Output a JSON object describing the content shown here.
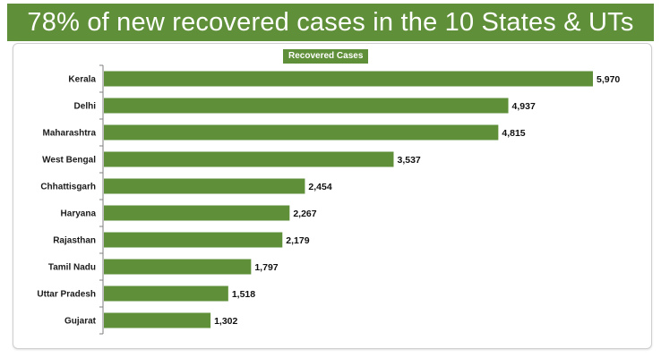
{
  "header": {
    "title": "78% of new recovered cases in the 10 States & UTs"
  },
  "colors": {
    "accent": "#5f8f38",
    "bar": "#5f8f38",
    "title_text": "#ffffff"
  },
  "chart_data": {
    "type": "bar",
    "orientation": "horizontal",
    "title": "78% of new recovered cases in the 10 States & UTs",
    "categories": [
      "Kerala",
      "Delhi",
      "Maharashtra",
      "West Bengal",
      "Chhattisgarh",
      "Haryana",
      "Rajasthan",
      "Tamil Nadu",
      "Uttar Pradesh",
      "Gujarat"
    ],
    "series": [
      {
        "name": "Recovered Cases",
        "values": [
          5970,
          4937,
          4815,
          3537,
          2454,
          2267,
          2179,
          1797,
          1518,
          1302
        ],
        "value_labels": [
          "5,970",
          "4,937",
          "4,815",
          "3,537",
          "2,454",
          "2,267",
          "2,179",
          "1,797",
          "1,518",
          "1,302"
        ]
      }
    ],
    "xlabel": "",
    "ylabel": "",
    "xlim": [
      0,
      5970
    ],
    "grid": false,
    "legend": "top-center"
  }
}
